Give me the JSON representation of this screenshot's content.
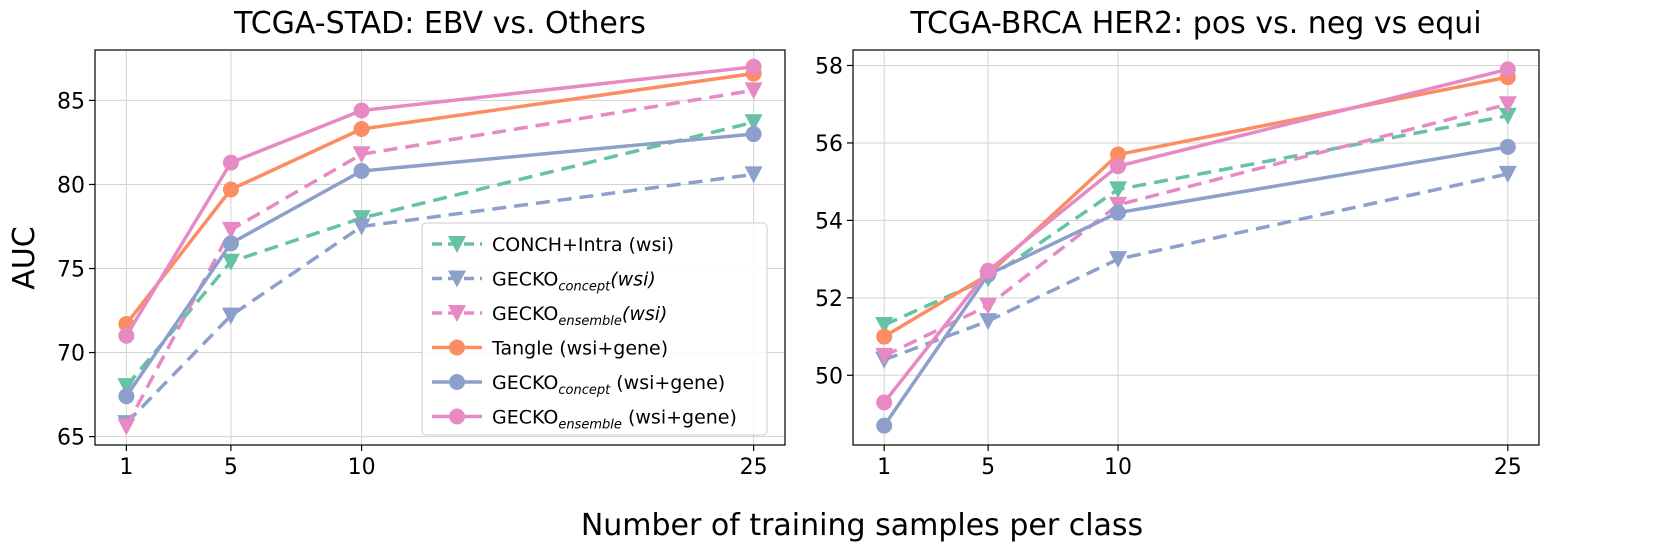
{
  "figure": {
    "shared_xlabel": "Number of training samples per class",
    "ylabel": "AUC"
  },
  "series_styles": [
    {
      "name": "CONCH+Intra (wsi)",
      "color": "#66c2a5",
      "dash": true,
      "marker": "triangle-down"
    },
    {
      "name": "GECKO_concept (wsi)",
      "color": "#8da0cb",
      "dash": true,
      "marker": "triangle-down"
    },
    {
      "name": "GECKO_ensemble (wsi)",
      "color": "#e78ac3",
      "dash": true,
      "marker": "triangle-down"
    },
    {
      "name": "Tangle (wsi+gene)",
      "color": "#fc8d62",
      "dash": false,
      "marker": "circle"
    },
    {
      "name": "GECKO_concept (wsi+gene)",
      "color": "#8da0cb",
      "dash": false,
      "marker": "circle"
    },
    {
      "name": "GECKO_ensemble (wsi+gene)",
      "color": "#e78ac3",
      "dash": false,
      "marker": "circle"
    }
  ],
  "legend": {
    "placement": "lower-right of left panel",
    "entries": [
      {
        "main": "CONCH+Intra (wsi)",
        "sub": "",
        "tail": ""
      },
      {
        "main": "GECKO",
        "sub": "concept",
        "tail": "(wsi)"
      },
      {
        "main": "GECKO",
        "sub": "ensemble",
        "tail": "(wsi)"
      },
      {
        "main": "Tangle (wsi+gene)",
        "sub": "",
        "tail": ""
      },
      {
        "main": "GECKO",
        "sub": "concept",
        "tail": " (wsi+gene)"
      },
      {
        "main": "GECKO",
        "sub": "ensemble",
        "tail": " (wsi+gene)"
      }
    ]
  },
  "chart_data": [
    {
      "type": "line",
      "title": "TCGA-STAD: EBV vs. Others",
      "xlabel": "Number of training samples per class",
      "ylabel": "AUC",
      "x": [
        1,
        5,
        10,
        25
      ],
      "xticks": [
        "1",
        "5",
        "10",
        "25"
      ],
      "yticks": [
        65,
        70,
        75,
        80,
        85
      ],
      "xlim": [
        -0.2,
        26.2
      ],
      "ylim": [
        64.5,
        88.0
      ],
      "grid": true,
      "series": [
        {
          "name": "CONCH+Intra (wsi)",
          "values": [
            68.0,
            75.4,
            78.0,
            83.7
          ]
        },
        {
          "name": "GECKO_concept (wsi)",
          "values": [
            65.8,
            72.2,
            77.5,
            80.6
          ]
        },
        {
          "name": "GECKO_ensemble (wsi)",
          "values": [
            65.6,
            77.3,
            81.8,
            85.6
          ]
        },
        {
          "name": "Tangle (wsi+gene)",
          "values": [
            71.7,
            79.7,
            83.3,
            86.6
          ]
        },
        {
          "name": "GECKO_concept (wsi+gene)",
          "values": [
            67.4,
            76.5,
            80.8,
            83.0
          ]
        },
        {
          "name": "GECKO_ensemble (wsi+gene)",
          "values": [
            71.0,
            81.3,
            84.4,
            87.0
          ]
        }
      ]
    },
    {
      "type": "line",
      "title": "TCGA-BRCA HER2: pos vs. neg vs equi",
      "xlabel": "Number of training samples per class",
      "ylabel": "",
      "x": [
        1,
        5,
        10,
        25
      ],
      "xticks": [
        "1",
        "5",
        "10",
        "25"
      ],
      "yticks": [
        50,
        52,
        54,
        56,
        58
      ],
      "xlim": [
        -0.2,
        26.2
      ],
      "ylim": [
        48.2,
        58.4
      ],
      "grid": true,
      "series": [
        {
          "name": "CONCH+Intra (wsi)",
          "values": [
            51.3,
            52.5,
            54.8,
            56.7
          ]
        },
        {
          "name": "GECKO_concept (wsi)",
          "values": [
            50.4,
            51.4,
            53.0,
            55.2
          ]
        },
        {
          "name": "GECKO_ensemble (wsi)",
          "values": [
            50.5,
            51.8,
            54.4,
            57.0
          ]
        },
        {
          "name": "Tangle (wsi+gene)",
          "values": [
            51.0,
            52.6,
            55.7,
            57.7
          ]
        },
        {
          "name": "GECKO_concept (wsi+gene)",
          "values": [
            48.7,
            52.6,
            54.2,
            55.9
          ]
        },
        {
          "name": "GECKO_ensemble (wsi+gene)",
          "values": [
            49.3,
            52.7,
            55.4,
            57.9
          ]
        }
      ]
    }
  ]
}
